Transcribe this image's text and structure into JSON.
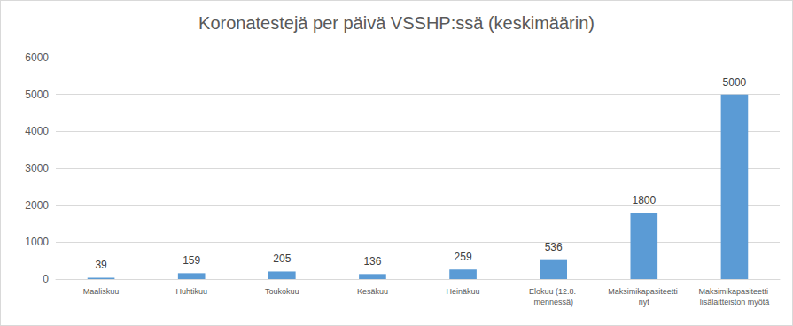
{
  "chart_data": {
    "type": "bar",
    "title": "Koronatestejä per päivä VSSHP:ssä (keskimäärin)",
    "categories": [
      "Maaliskuu",
      "Huhtikuu",
      "Toukokuu",
      "Kesäkuu",
      "Heinäkuu",
      "Elokuu (12.8. mennessä)",
      "Maksimikapasiteetti nyt",
      "Maksimikapasiteetti lisälaitteiston myötä"
    ],
    "values": [
      39,
      159,
      205,
      136,
      259,
      536,
      1800,
      5000
    ],
    "color": "#5b9bd5",
    "ylim": [
      0,
      6000
    ],
    "yticks": [
      0,
      1000,
      2000,
      3000,
      4000,
      5000,
      6000
    ],
    "grid": true,
    "data_labels": true
  }
}
